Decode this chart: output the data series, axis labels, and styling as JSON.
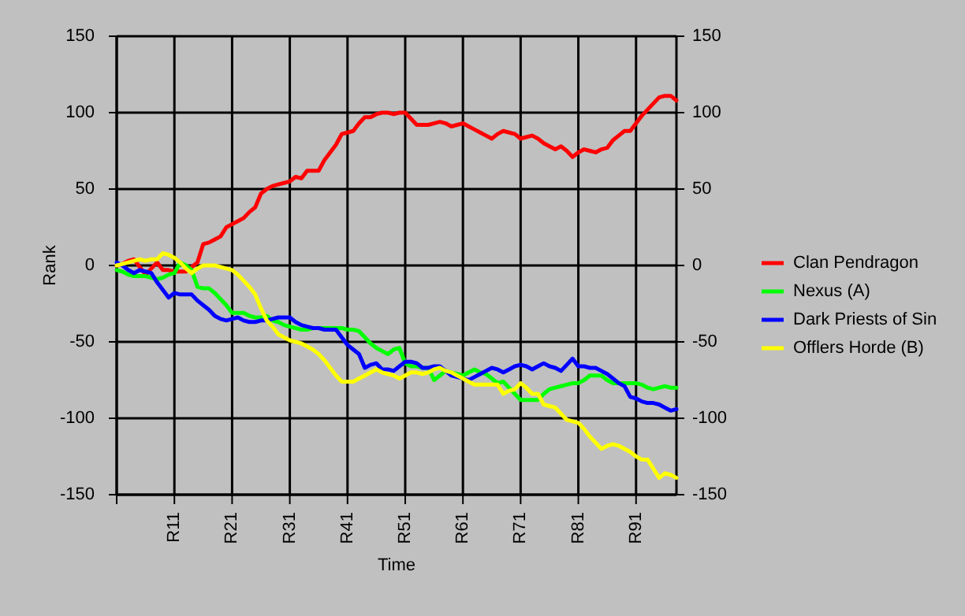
{
  "chart_data": {
    "type": "line",
    "xlabel": "Time",
    "ylabel": "Rank",
    "categories": [
      null,
      null,
      null,
      null,
      null,
      null,
      null,
      null,
      null,
      null,
      "R11",
      null,
      null,
      null,
      null,
      null,
      null,
      null,
      null,
      null,
      "R21",
      null,
      null,
      null,
      null,
      null,
      null,
      null,
      null,
      null,
      "R31",
      null,
      null,
      null,
      null,
      null,
      null,
      null,
      null,
      null,
      "R41",
      null,
      null,
      null,
      null,
      null,
      null,
      null,
      null,
      null,
      "R51",
      null,
      null,
      null,
      null,
      null,
      null,
      null,
      null,
      null,
      "R61",
      null,
      null,
      null,
      null,
      null,
      null,
      null,
      null,
      null,
      "R71",
      null,
      null,
      null,
      null,
      null,
      null,
      null,
      null,
      null,
      "R81",
      null,
      null,
      null,
      null,
      null,
      null,
      null,
      null,
      null,
      "R91",
      null,
      null,
      null,
      null,
      null,
      null,
      null
    ],
    "ylim": [
      -150,
      150
    ],
    "yticks": [
      -150,
      -100,
      -50,
      0,
      50,
      100,
      150
    ],
    "y2lim": [
      -150,
      150
    ],
    "y2ticks": [
      -150,
      -100,
      -50,
      0,
      50,
      100,
      150
    ],
    "grid": true,
    "legend": "right",
    "marker": "none",
    "line_style": "solid",
    "series": [
      {
        "name": "Clan Pendragon",
        "color": "#ff0000",
        "values": [
          0,
          1,
          3,
          4,
          -1,
          -6,
          -2,
          2,
          -3,
          -3,
          -4,
          -4,
          -4,
          -1,
          2,
          14,
          15,
          17,
          19,
          25,
          27,
          29,
          31,
          35,
          38,
          47,
          50,
          52,
          53,
          54,
          55,
          58,
          57,
          62,
          62,
          62,
          69,
          74,
          79,
          86,
          87,
          88,
          93,
          97,
          97,
          99,
          100,
          100,
          99,
          100,
          100,
          96,
          92,
          92,
          92,
          93,
          94,
          93,
          91,
          92,
          93,
          91,
          89,
          87,
          85,
          83,
          86,
          88,
          87,
          86,
          83,
          84,
          85,
          83,
          80,
          78,
          76,
          78,
          75,
          71,
          74,
          76,
          75,
          74,
          76,
          77,
          82,
          85,
          88,
          88,
          93,
          98,
          102,
          106,
          110,
          111,
          111,
          108
        ]
      },
      {
        "name": "Nexus (A)",
        "color": "#00ff00",
        "values": [
          -3,
          -4,
          -6,
          -7,
          -7,
          -7,
          -8,
          -9,
          -8,
          -6,
          -5,
          2,
          0,
          -3,
          -14,
          -15,
          -15,
          -18,
          -22,
          -26,
          -31,
          -31,
          -31,
          -33,
          -34,
          -34,
          -33,
          -36,
          -37,
          -39,
          -40,
          -41,
          -42,
          -42,
          -41,
          -41,
          -41,
          -41,
          -41,
          -41,
          -42,
          -42,
          -43,
          -47,
          -51,
          -54,
          -56,
          -58,
          -55,
          -54,
          -64,
          -66,
          -66,
          -67,
          -67,
          -75,
          -72,
          -69,
          -70,
          -71,
          -72,
          -70,
          -68,
          -70,
          -71,
          -74,
          -77,
          -76,
          -80,
          -84,
          -88,
          -88,
          -88,
          -88,
          -84,
          -81,
          -80,
          -79,
          -78,
          -77,
          -77,
          -75,
          -72,
          -72,
          -72,
          -75,
          -77,
          -77,
          -77,
          -77,
          -77,
          -78,
          -80,
          -81,
          -80,
          -79,
          -80,
          -80
        ]
      },
      {
        "name": "Dark Priests of Sin",
        "color": "#0000ff",
        "values": [
          2,
          0,
          -3,
          -5,
          -3,
          -4,
          -5,
          -11,
          -16,
          -21,
          -18,
          -19,
          -19,
          -19,
          -23,
          -26,
          -29,
          -33,
          -35,
          -36,
          -35,
          -34,
          -36,
          -37,
          -37,
          -36,
          -36,
          -35,
          -34,
          -34,
          -34,
          -37,
          -39,
          -40,
          -41,
          -41,
          -42,
          -42,
          -42,
          -47,
          -52,
          -55,
          -58,
          -67,
          -65,
          -64,
          -68,
          -68,
          -69,
          -66,
          -63,
          -63,
          -64,
          -67,
          -67,
          -66,
          -66,
          -69,
          -72,
          -73,
          -74,
          -75,
          -73,
          -71,
          -69,
          -67,
          -68,
          -70,
          -68,
          -66,
          -65,
          -66,
          -68,
          -66,
          -64,
          -66,
          -67,
          -69,
          -65,
          -61,
          -66,
          -66,
          -67,
          -67,
          -69,
          -71,
          -74,
          -77,
          -79,
          -86,
          -87,
          -89,
          -90,
          -90,
          -91,
          -93,
          -95,
          -94
        ]
      },
      {
        "name": "Offlers Horde (B)",
        "color": "#ffff00",
        "values": [
          0,
          1,
          2,
          3,
          4,
          3,
          4,
          4,
          8,
          7,
          5,
          2,
          -2,
          -5,
          -2,
          0,
          0,
          0,
          -1,
          -2,
          -3,
          -6,
          -10,
          -14,
          -19,
          -28,
          -36,
          -40,
          -45,
          -47,
          -49,
          -50,
          -51,
          -53,
          -55,
          -58,
          -62,
          -67,
          -72,
          -76,
          -76,
          -76,
          -74,
          -72,
          -70,
          -68,
          -70,
          -71,
          -72,
          -74,
          -72,
          -70,
          -70,
          -71,
          -70,
          -68,
          -67,
          -69,
          -70,
          -72,
          -74,
          -76,
          -78,
          -78,
          -78,
          -78,
          -78,
          -84,
          -82,
          -81,
          -77,
          -80,
          -84,
          -84,
          -91,
          -92,
          -93,
          -97,
          -101,
          -102,
          -103,
          -107,
          -112,
          -116,
          -120,
          -118,
          -117,
          -118,
          -120,
          -122,
          -125,
          -127,
          -127,
          -133,
          -139,
          -136,
          -137,
          -139
        ]
      }
    ]
  }
}
